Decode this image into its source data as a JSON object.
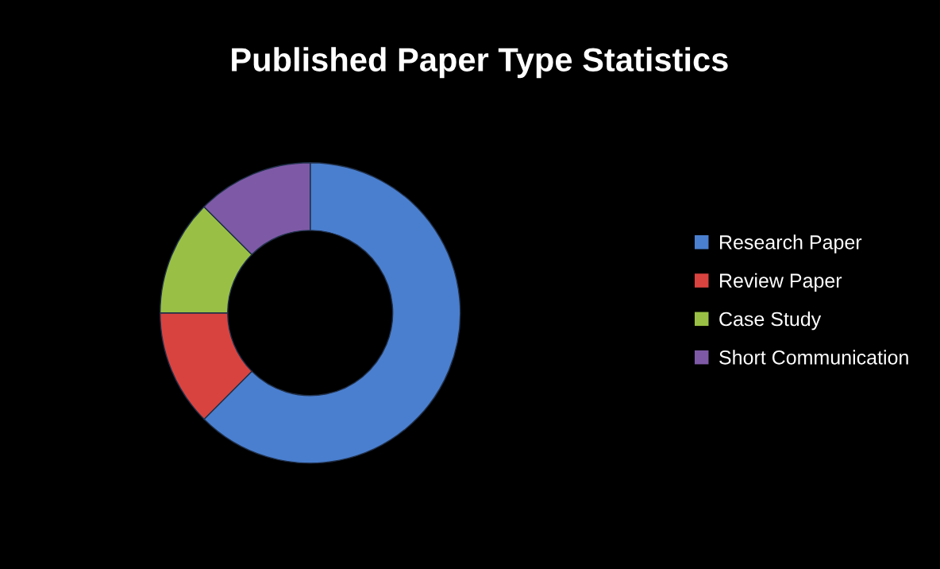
{
  "chart_data": {
    "type": "donut",
    "title": "Published Paper Type Statistics",
    "categories": [
      "Research Paper",
      "Review Paper",
      "Case Study",
      "Short Communication"
    ],
    "values": [
      62.5,
      12.5,
      12.5,
      12.5
    ],
    "colors": [
      "#4a7fcf",
      "#d9433f",
      "#99c044",
      "#7e5aa6"
    ],
    "legend": "right"
  }
}
